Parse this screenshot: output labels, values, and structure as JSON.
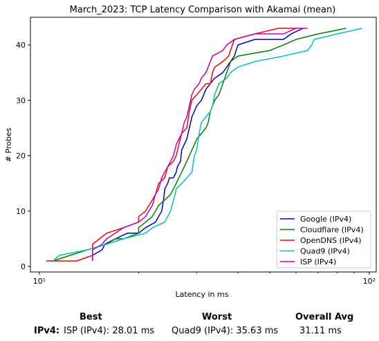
{
  "chart_data": {
    "type": "line",
    "title": "March_2023: TCP Latency Comparison with Akamai (mean)",
    "xlabel": "Latency in ms",
    "ylabel": "# Probes",
    "xscale": "log",
    "xlim": [
      9.4,
      105
    ],
    "ylim": [
      -1,
      45
    ],
    "xticks": [
      {
        "value": 10,
        "label": "10¹"
      },
      {
        "value": 100,
        "label": "10²"
      }
    ],
    "yticks": [
      0,
      10,
      20,
      30,
      40
    ],
    "legend_position": "lower-right",
    "series": [
      {
        "name": "Google (IPv4)",
        "color": "#0000bf",
        "points": [
          [
            14.5,
            1
          ],
          [
            14.5,
            2
          ],
          [
            15.5,
            3
          ],
          [
            15.8,
            4
          ],
          [
            17,
            5
          ],
          [
            18.5,
            6
          ],
          [
            20,
            6
          ],
          [
            21,
            7
          ],
          [
            22.5,
            8
          ],
          [
            23,
            9
          ],
          [
            23.5,
            10
          ],
          [
            23.8,
            12
          ],
          [
            24,
            14
          ],
          [
            24.5,
            15
          ],
          [
            24.8,
            16
          ],
          [
            25.5,
            16
          ],
          [
            26,
            17
          ],
          [
            26.2,
            18
          ],
          [
            26.8,
            19
          ],
          [
            27,
            21
          ],
          [
            27.5,
            22
          ],
          [
            28,
            23
          ],
          [
            28.5,
            25
          ],
          [
            29,
            27
          ],
          [
            29.5,
            28
          ],
          [
            30,
            29
          ],
          [
            31,
            30
          ],
          [
            32,
            32
          ],
          [
            34,
            34
          ],
          [
            36,
            35
          ],
          [
            38,
            37
          ],
          [
            39,
            38
          ],
          [
            40,
            40
          ],
          [
            45,
            41
          ],
          [
            55,
            41
          ],
          [
            58,
            42
          ],
          [
            63,
            43
          ]
        ]
      },
      {
        "name": "Cloudflare (IPv4)",
        "color": "#007f00",
        "points": [
          [
            11,
            1
          ],
          [
            14,
            3
          ],
          [
            16,
            4
          ],
          [
            17,
            5
          ],
          [
            18,
            5
          ],
          [
            20,
            6
          ],
          [
            20,
            7
          ],
          [
            21,
            8
          ],
          [
            22,
            9
          ],
          [
            23,
            11
          ],
          [
            24,
            12
          ],
          [
            25,
            13
          ],
          [
            25.5,
            14
          ],
          [
            26,
            15
          ],
          [
            26.5,
            16
          ],
          [
            27,
            17
          ],
          [
            27.5,
            18
          ],
          [
            28,
            19
          ],
          [
            28.5,
            20
          ],
          [
            29,
            21
          ],
          [
            29.5,
            22
          ],
          [
            30,
            23
          ],
          [
            31,
            24
          ],
          [
            32,
            25
          ],
          [
            32.5,
            26
          ],
          [
            33,
            28
          ],
          [
            34,
            30
          ],
          [
            35,
            31
          ],
          [
            36,
            33
          ],
          [
            37,
            35
          ],
          [
            38,
            37
          ],
          [
            40,
            38
          ],
          [
            50,
            39
          ],
          [
            55,
            40
          ],
          [
            60,
            41
          ],
          [
            70,
            42
          ],
          [
            85,
            43
          ]
        ]
      },
      {
        "name": "OpenDNS (IPv4)",
        "color": "#ff0000",
        "points": [
          [
            10.5,
            1
          ],
          [
            13,
            1
          ],
          [
            14.5,
            2
          ],
          [
            14.5,
            4
          ],
          [
            16,
            6
          ],
          [
            18,
            7
          ],
          [
            20,
            8
          ],
          [
            20,
            9
          ],
          [
            21,
            10
          ],
          [
            22,
            12
          ],
          [
            22.5,
            13
          ],
          [
            23,
            15
          ],
          [
            24,
            16
          ],
          [
            24.5,
            18
          ],
          [
            25.5,
            19
          ],
          [
            26,
            20
          ],
          [
            26.5,
            22
          ],
          [
            27,
            24
          ],
          [
            28,
            25
          ],
          [
            28.5,
            28
          ],
          [
            29,
            30
          ],
          [
            30,
            31
          ],
          [
            31,
            32
          ],
          [
            32,
            33
          ],
          [
            33,
            33
          ],
          [
            33.5,
            35
          ],
          [
            34,
            36
          ],
          [
            36,
            37
          ],
          [
            37.5,
            38
          ],
          [
            38,
            39
          ],
          [
            39,
            41
          ],
          [
            45,
            42
          ],
          [
            53,
            43
          ],
          [
            60,
            43
          ]
        ]
      },
      {
        "name": "Quad9 (IPv4)",
        "color": "#00bfbf",
        "points": [
          [
            11,
            1
          ],
          [
            11.5,
            2
          ],
          [
            14,
            3
          ],
          [
            16,
            4
          ],
          [
            18,
            5
          ],
          [
            21,
            6
          ],
          [
            22,
            7
          ],
          [
            24,
            8
          ],
          [
            24.5,
            9
          ],
          [
            25,
            10
          ],
          [
            25.5,
            12
          ],
          [
            25.8,
            13
          ],
          [
            26,
            14
          ],
          [
            27,
            15
          ],
          [
            28,
            16
          ],
          [
            29,
            17
          ],
          [
            29.5,
            20
          ],
          [
            30,
            21
          ],
          [
            30.5,
            24
          ],
          [
            31,
            26
          ],
          [
            32,
            27
          ],
          [
            33,
            28
          ],
          [
            33.5,
            29
          ],
          [
            34,
            31
          ],
          [
            34.5,
            32
          ],
          [
            35,
            33
          ],
          [
            37,
            34
          ],
          [
            38,
            35
          ],
          [
            40,
            36
          ],
          [
            45,
            37
          ],
          [
            55,
            38
          ],
          [
            65,
            39
          ],
          [
            67,
            40
          ],
          [
            68,
            41
          ],
          [
            80,
            42
          ],
          [
            95,
            43
          ]
        ]
      },
      {
        "name": "ISP (IPv4)",
        "color": "#bf00bf",
        "points": [
          [
            14.5,
            1
          ],
          [
            14.5,
            3
          ],
          [
            15.5,
            4
          ],
          [
            16,
            5
          ],
          [
            17,
            6
          ],
          [
            18,
            7
          ],
          [
            20,
            8
          ],
          [
            21,
            9
          ],
          [
            22,
            11
          ],
          [
            22.5,
            13
          ],
          [
            23,
            14
          ],
          [
            23.5,
            16
          ],
          [
            24.5,
            18
          ],
          [
            25,
            19
          ],
          [
            25.5,
            20
          ],
          [
            26,
            22
          ],
          [
            26.5,
            23
          ],
          [
            27,
            24
          ],
          [
            27.5,
            26
          ],
          [
            28,
            27
          ],
          [
            28.5,
            29
          ],
          [
            29,
            31
          ],
          [
            29.5,
            32
          ],
          [
            30.5,
            33
          ],
          [
            31,
            34
          ],
          [
            32,
            35
          ],
          [
            33,
            37
          ],
          [
            33.5,
            38
          ],
          [
            36,
            39
          ],
          [
            37,
            40
          ],
          [
            39,
            41
          ],
          [
            45,
            42
          ],
          [
            55,
            42
          ],
          [
            60,
            43
          ],
          [
            65,
            43
          ]
        ]
      }
    ]
  },
  "summary": {
    "best_header": "Best",
    "worst_header": "Worst",
    "avg_header": "Overall Avg",
    "row_label": "IPv4:",
    "best_value": "ISP (IPv4): 28.01 ms",
    "worst_value": "Quad9 (IPv4): 35.63 ms",
    "avg_value": "31.11 ms"
  }
}
